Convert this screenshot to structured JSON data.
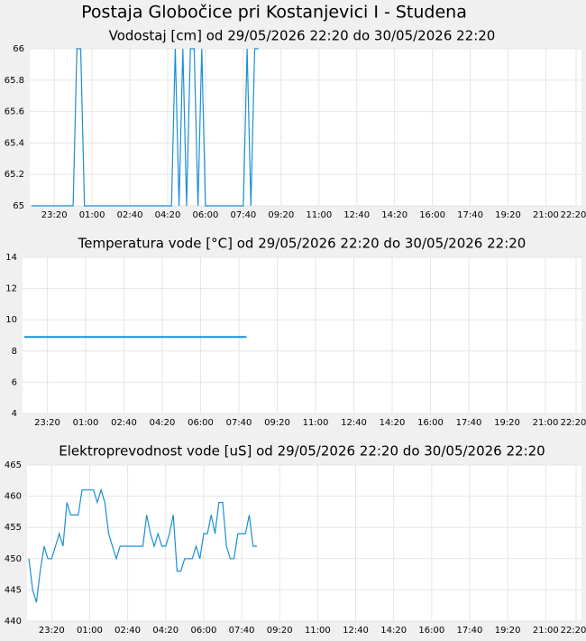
{
  "title": "Postaja Globočice pri Kostanjevici I - Studena",
  "chart_data": [
    {
      "type": "line",
      "title": "Vodostaj [cm] od 29/05/2026 22:20 do 30/05/2026 22:20",
      "x": [
        "22:20",
        "22:30",
        "22:40",
        "22:50",
        "23:00",
        "23:10",
        "23:20",
        "23:30",
        "23:40",
        "23:50",
        "00:00",
        "00:10",
        "00:20",
        "00:30",
        "00:40",
        "00:50",
        "01:00",
        "01:10",
        "01:20",
        "01:30",
        "01:40",
        "01:50",
        "02:00",
        "02:10",
        "02:20",
        "02:30",
        "02:40",
        "02:50",
        "03:00",
        "03:10",
        "03:20",
        "03:30",
        "03:40",
        "03:50",
        "04:00",
        "04:10",
        "04:20",
        "04:30",
        "04:40",
        "04:50",
        "05:00",
        "05:10",
        "05:20",
        "05:30",
        "05:40",
        "05:50",
        "06:00",
        "06:10",
        "06:20",
        "06:30",
        "06:40",
        "06:50",
        "07:00",
        "07:10",
        "07:20",
        "07:30",
        "07:40",
        "07:50",
        "08:00",
        "08:10",
        "08:20"
      ],
      "series": [
        {
          "name": "Vodostaj",
          "color": "#1a8fd6",
          "values": [
            65,
            65,
            65,
            65,
            65,
            65,
            65,
            65,
            65,
            65,
            65,
            65,
            66,
            66,
            65,
            65,
            65,
            65,
            65,
            65,
            65,
            65,
            65,
            65,
            65,
            65,
            65,
            65,
            65,
            65,
            65,
            65,
            65,
            65,
            65,
            65,
            65,
            65,
            66,
            65,
            66,
            65,
            66,
            66,
            65,
            66,
            65,
            65,
            65,
            65,
            65,
            65,
            65,
            65,
            65,
            65,
            65,
            66,
            65,
            66,
            66
          ]
        }
      ],
      "xlim": [
        "22:20",
        "22:20"
      ],
      "xticks": [
        "23:20",
        "01:00",
        "02:40",
        "04:20",
        "06:00",
        "07:40",
        "09:20",
        "11:00",
        "12:40",
        "14:20",
        "16:00",
        "17:40",
        "19:20",
        "21:00",
        "22:20"
      ],
      "ylim": [
        65,
        66
      ],
      "yticks": [
        65,
        65.2,
        65.4,
        65.6,
        65.8,
        66
      ],
      "grid": true
    },
    {
      "type": "line",
      "title": "Temperatura vode [°C] od 29/05/2026 22:20 do 30/05/2026 22:20",
      "x": [
        "22:20",
        "22:30",
        "22:40",
        "22:50",
        "23:00",
        "23:10",
        "23:20",
        "23:30",
        "23:40",
        "23:50",
        "00:00",
        "00:10",
        "00:20",
        "00:30",
        "00:40",
        "00:50",
        "01:00",
        "01:10",
        "01:20",
        "01:30",
        "01:40",
        "01:50",
        "02:00",
        "02:10",
        "02:20",
        "02:30",
        "02:40",
        "02:50",
        "03:00",
        "03:10",
        "03:20",
        "03:30",
        "03:40",
        "03:50",
        "04:00",
        "04:10",
        "04:20",
        "04:30",
        "04:40",
        "04:50",
        "05:00",
        "05:10",
        "05:20",
        "05:30",
        "05:40",
        "05:50",
        "06:00",
        "06:10",
        "06:20",
        "06:30",
        "06:40",
        "06:50",
        "07:00",
        "07:10",
        "07:20",
        "07:30",
        "07:40",
        "07:50",
        "08:00",
        "08:10",
        "08:20"
      ],
      "series": [
        {
          "name": "Temperatura",
          "color": "#1a8fd6",
          "values": [
            8.9,
            8.9,
            8.9,
            8.9,
            8.9,
            8.9,
            8.9,
            8.9,
            8.9,
            8.9,
            8.9,
            8.9,
            8.9,
            8.9,
            8.9,
            8.9,
            8.9,
            8.9,
            8.9,
            8.9,
            8.9,
            8.9,
            8.9,
            8.9,
            8.9,
            8.9,
            8.9,
            8.9,
            8.9,
            8.9,
            8.9,
            8.9,
            8.9,
            8.9,
            8.9,
            8.9,
            8.9,
            8.9,
            8.9,
            8.9,
            8.9,
            8.9,
            8.9,
            8.9,
            8.9,
            8.9,
            8.9,
            8.9,
            8.9,
            8.9,
            8.9,
            8.9,
            8.9,
            8.9,
            8.9,
            8.9,
            8.9,
            8.9,
            8.9,
            null,
            null
          ]
        }
      ],
      "xlim": [
        "22:20",
        "22:20"
      ],
      "xticks": [
        "23:20",
        "01:00",
        "02:40",
        "04:20",
        "06:00",
        "07:40",
        "09:20",
        "11:00",
        "12:40",
        "14:20",
        "16:00",
        "17:40",
        "19:20",
        "21:00",
        "22:20"
      ],
      "ylim": [
        4,
        14
      ],
      "yticks": [
        4,
        6,
        8,
        10,
        12,
        14
      ],
      "grid": true
    },
    {
      "type": "line",
      "title": "Elektroprevodnost vode [uS] od 29/05/2026 22:20 do 30/05/2026 22:20",
      "x": [
        "22:20",
        "22:30",
        "22:40",
        "22:50",
        "23:00",
        "23:10",
        "23:20",
        "23:30",
        "23:40",
        "23:50",
        "00:00",
        "00:10",
        "00:20",
        "00:30",
        "00:40",
        "00:50",
        "01:00",
        "01:10",
        "01:20",
        "01:30",
        "01:40",
        "01:50",
        "02:00",
        "02:10",
        "02:20",
        "02:30",
        "02:40",
        "02:50",
        "03:00",
        "03:10",
        "03:20",
        "03:30",
        "03:40",
        "03:50",
        "04:00",
        "04:10",
        "04:20",
        "04:30",
        "04:40",
        "04:50",
        "05:00",
        "05:10",
        "05:20",
        "05:30",
        "05:40",
        "05:50",
        "06:00",
        "06:10",
        "06:20",
        "06:30",
        "06:40",
        "06:50",
        "07:00",
        "07:10",
        "07:20",
        "07:30",
        "07:40",
        "07:50",
        "08:00",
        "08:10",
        "08:20"
      ],
      "series": [
        {
          "name": "Elektroprevodnost",
          "color": "#1a8fd6",
          "values": [
            450,
            445,
            443,
            448,
            452,
            450,
            450,
            452,
            454,
            452,
            459,
            457,
            457,
            457,
            461,
            461,
            461,
            461,
            459,
            461,
            459,
            454,
            452,
            450,
            452,
            452,
            452,
            452,
            452,
            452,
            452,
            457,
            454,
            452,
            454,
            452,
            452,
            454,
            457,
            448,
            448,
            450,
            450,
            450,
            452,
            450,
            454,
            454,
            457,
            454,
            459,
            459,
            452,
            450,
            450,
            454,
            454,
            454,
            457,
            452,
            452
          ]
        }
      ],
      "xlim": [
        "22:20",
        "22:20"
      ],
      "xticks": [
        "23:20",
        "01:00",
        "02:40",
        "04:20",
        "06:00",
        "07:40",
        "09:20",
        "11:00",
        "12:40",
        "14:20",
        "16:00",
        "17:40",
        "19:20",
        "21:00",
        "22:20"
      ],
      "ylim": [
        440,
        465
      ],
      "yticks": [
        440,
        445,
        450,
        455,
        460,
        465
      ],
      "grid": true
    }
  ]
}
